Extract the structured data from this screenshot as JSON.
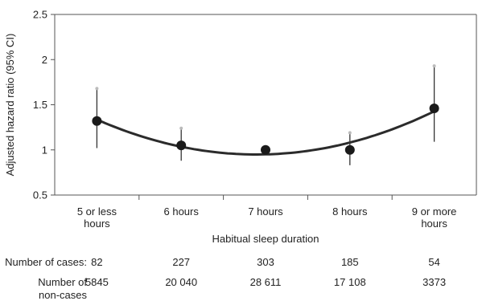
{
  "chart_data": {
    "type": "scatter",
    "title": "",
    "xlabel": "Habitual sleep duration",
    "ylabel": "Adjusted hazard ratio (95% CI)",
    "ylim": [
      0.5,
      2.5
    ],
    "yticks": [
      "0.5",
      "1",
      "1.5",
      "2",
      "2.5"
    ],
    "grid": false,
    "categories": [
      [
        "5 or less",
        "hours"
      ],
      [
        "6 hours"
      ],
      [
        "7 hours"
      ],
      [
        "8 hours"
      ],
      [
        "9 or more",
        "hours"
      ]
    ],
    "series": [
      {
        "hazard_ratio": [
          1.32,
          1.05,
          1.0,
          1.0,
          1.46
        ],
        "ci_lower": [
          1.02,
          0.88,
          1.0,
          0.83,
          1.09
        ],
        "ci_upper": [
          1.68,
          1.24,
          1.0,
          1.19,
          1.93
        ],
        "trend": "quadratic fit"
      }
    ],
    "table_rows": [
      {
        "label": [
          "Number of cases:"
        ],
        "values": [
          "82",
          "227",
          "303",
          "185",
          "54"
        ]
      },
      {
        "label": [
          "Number of",
          "non-cases"
        ],
        "values": [
          "5845",
          "20 040",
          "28 611",
          "17 108",
          "3373"
        ]
      }
    ],
    "colors": {
      "points": "#1a1a1a",
      "ci_lines": "#333333",
      "ci_tips": "#bbbbbb",
      "trend": "#2b2b2b",
      "axis": "#555555"
    }
  }
}
